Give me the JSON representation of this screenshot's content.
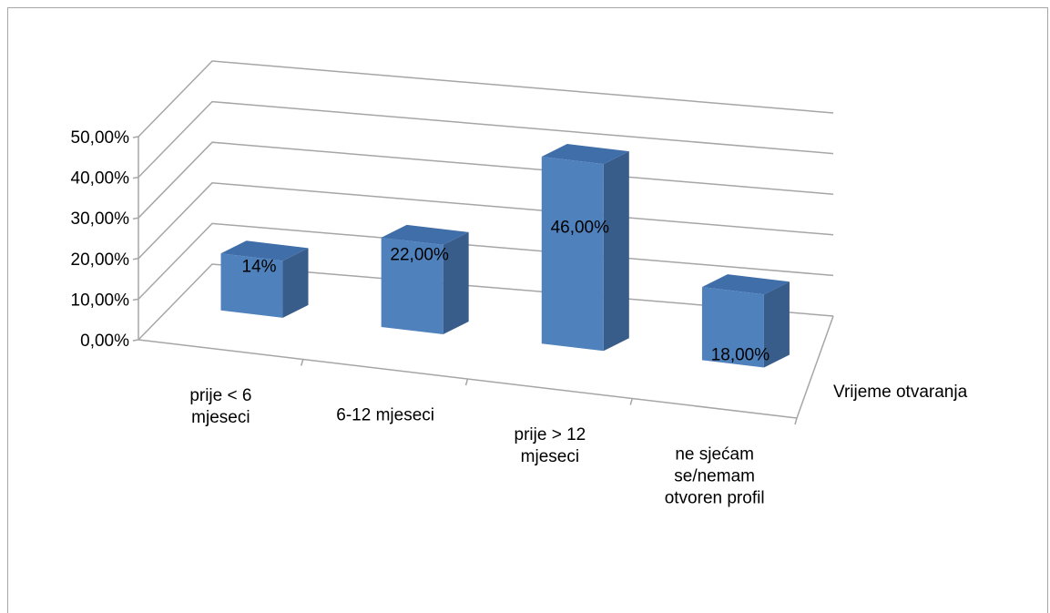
{
  "chart_data": {
    "type": "bar",
    "title": "",
    "xlabel": "",
    "ylabel": "",
    "ylim": [
      0,
      50
    ],
    "y_ticks": [
      0,
      10,
      20,
      30,
      40,
      50
    ],
    "y_tick_labels": [
      "0,00%",
      "10,00%",
      "20,00%",
      "30,00%",
      "40,00%",
      "50,00%"
    ],
    "grid": true,
    "categories": [
      [
        "prije < 6",
        "mjeseci"
      ],
      [
        "6-12 mjeseci"
      ],
      [
        "prije > 12",
        "mjeseci"
      ],
      [
        "ne sjećam",
        "se/nemam",
        "otvoren profil"
      ]
    ],
    "series": [
      {
        "name": "Vrijeme otvaranja",
        "values": [
          14,
          22,
          46,
          18
        ],
        "data_labels": [
          "14%",
          "22,00%",
          "46,00%",
          "18,00%"
        ]
      }
    ],
    "colors": {
      "bar_front": "#4f81bd",
      "bar_side": "#385d8a",
      "bar_top": "#3f6ea8",
      "grid": "#a6a6a6"
    }
  }
}
